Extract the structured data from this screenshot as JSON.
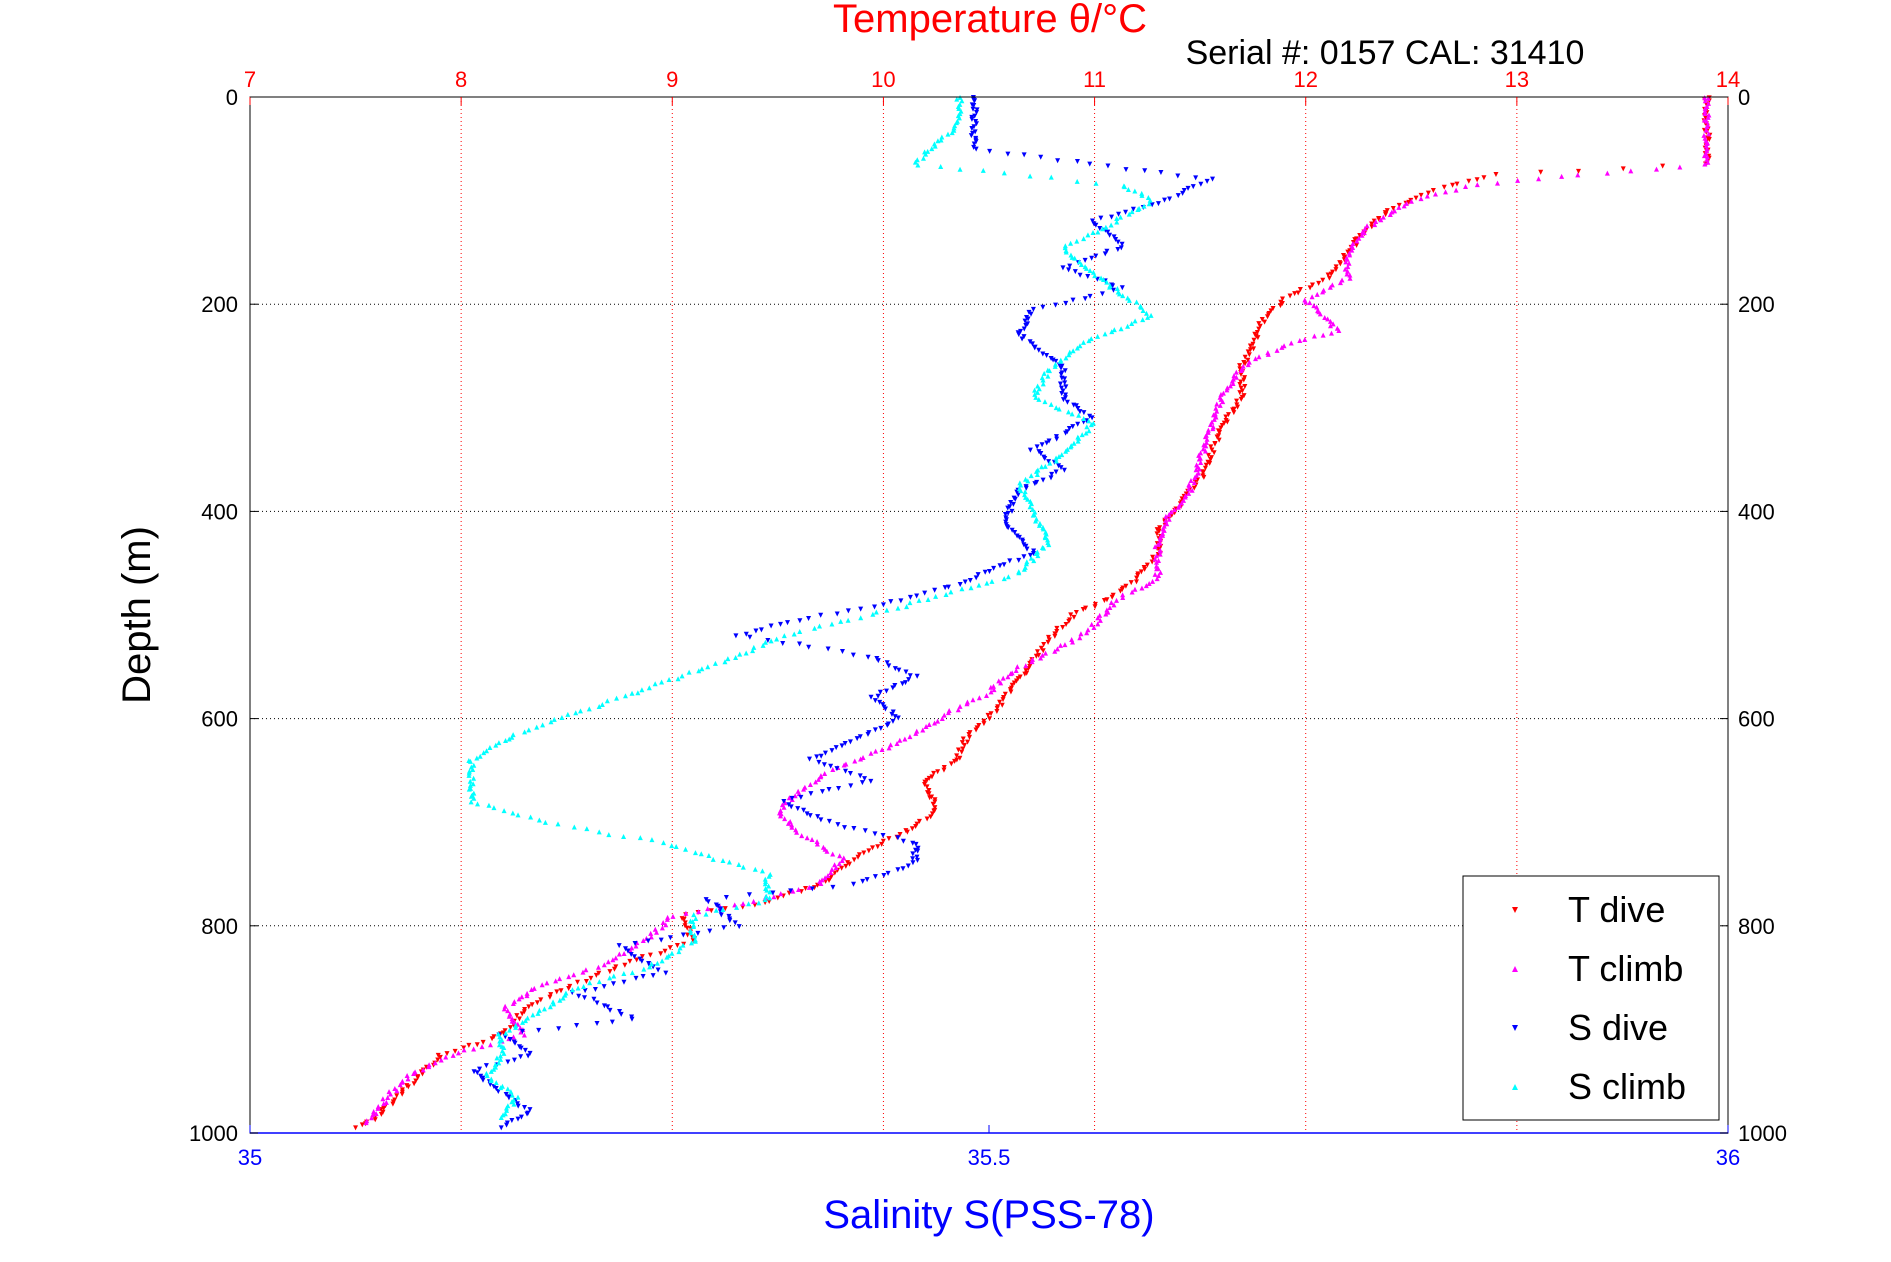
{
  "chart_data": {
    "type": "scatter",
    "title": "Temperature θ/°C",
    "subtitle": "Serial #: 0157  CAL: 31410",
    "xlabel": "Salinity S(PSS-78)",
    "ylabel": "Depth (m)",
    "x_top_axis": {
      "label": "Temperature θ/°C",
      "lim": [
        7,
        14
      ],
      "ticks": [
        "7",
        "8",
        "9",
        "10",
        "11",
        "12",
        "13",
        "14"
      ],
      "color": "#ff0000"
    },
    "x_bottom_axis": {
      "label": "Salinity S(PSS-78)",
      "lim": [
        35,
        36
      ],
      "ticks": [
        "35",
        "35.5",
        "36"
      ],
      "color": "#0000ff"
    },
    "y_axis": {
      "label": "Depth (m)",
      "lim": [
        0,
        1000
      ],
      "reversed": true,
      "ticks": [
        "0",
        "200",
        "400",
        "600",
        "800",
        "1000"
      ]
    },
    "grid": true,
    "legend_placement": "bottom-right",
    "series": [
      {
        "name": "T dive",
        "axis": "temperature",
        "color": "#ff0000",
        "marker": "triangle-down",
        "points": [
          [
            13.9,
            0
          ],
          [
            13.9,
            20
          ],
          [
            13.9,
            50
          ],
          [
            13.9,
            65
          ],
          [
            12.9,
            75
          ],
          [
            12.6,
            90
          ],
          [
            12.4,
            110
          ],
          [
            12.3,
            125
          ],
          [
            12.2,
            150
          ],
          [
            12.1,
            175
          ],
          [
            11.9,
            195
          ],
          [
            11.8,
            215
          ],
          [
            11.75,
            240
          ],
          [
            11.7,
            260
          ],
          [
            11.7,
            290
          ],
          [
            11.6,
            320
          ],
          [
            11.55,
            345
          ],
          [
            11.5,
            370
          ],
          [
            11.4,
            395
          ],
          [
            11.3,
            420
          ],
          [
            11.3,
            440
          ],
          [
            11.2,
            465
          ],
          [
            11.1,
            480
          ],
          [
            10.9,
            500
          ],
          [
            10.8,
            520
          ],
          [
            10.7,
            545
          ],
          [
            10.6,
            575
          ],
          [
            10.5,
            600
          ],
          [
            10.4,
            615
          ],
          [
            10.35,
            640
          ],
          [
            10.2,
            660
          ],
          [
            10.25,
            690
          ],
          [
            10.1,
            710
          ],
          [
            9.9,
            730
          ],
          [
            9.7,
            760
          ],
          [
            9.4,
            780
          ],
          [
            9.05,
            790
          ],
          [
            9.1,
            815
          ],
          [
            8.8,
            835
          ],
          [
            8.5,
            860
          ],
          [
            8.3,
            880
          ],
          [
            8.2,
            905
          ],
          [
            7.9,
            925
          ],
          [
            7.8,
            945
          ],
          [
            7.7,
            965
          ],
          [
            7.6,
            985
          ],
          [
            7.5,
            995
          ]
        ]
      },
      {
        "name": "T climb",
        "axis": "temperature",
        "color": "#ff00ff",
        "marker": "triangle-up",
        "points": [
          [
            13.9,
            0
          ],
          [
            13.9,
            20
          ],
          [
            13.9,
            50
          ],
          [
            13.9,
            65
          ],
          [
            13.3,
            75
          ],
          [
            12.8,
            85
          ],
          [
            12.5,
            100
          ],
          [
            12.3,
            125
          ],
          [
            12.2,
            150
          ],
          [
            12.2,
            175
          ],
          [
            12.0,
            195
          ],
          [
            12.15,
            225
          ],
          [
            11.9,
            240
          ],
          [
            11.7,
            260
          ],
          [
            11.6,
            290
          ],
          [
            11.55,
            320
          ],
          [
            11.5,
            350
          ],
          [
            11.45,
            380
          ],
          [
            11.35,
            405
          ],
          [
            11.3,
            430
          ],
          [
            11.3,
            465
          ],
          [
            11.1,
            485
          ],
          [
            11.0,
            510
          ],
          [
            10.85,
            530
          ],
          [
            10.6,
            555
          ],
          [
            10.5,
            575
          ],
          [
            10.3,
            595
          ],
          [
            10.15,
            615
          ],
          [
            10.0,
            630
          ],
          [
            9.75,
            650
          ],
          [
            9.6,
            670
          ],
          [
            9.5,
            690
          ],
          [
            9.6,
            710
          ],
          [
            9.8,
            735
          ],
          [
            9.7,
            760
          ],
          [
            9.3,
            780
          ],
          [
            9.0,
            790
          ],
          [
            8.9,
            810
          ],
          [
            8.7,
            835
          ],
          [
            8.35,
            860
          ],
          [
            8.2,
            880
          ],
          [
            8.3,
            905
          ],
          [
            7.95,
            925
          ],
          [
            7.75,
            945
          ],
          [
            7.65,
            965
          ],
          [
            7.55,
            990
          ]
        ]
      },
      {
        "name": "S dive",
        "axis": "salinity",
        "color": "#0000ff",
        "marker": "triangle-down",
        "points": [
          [
            35.49,
            0
          ],
          [
            35.49,
            20
          ],
          [
            35.49,
            50
          ],
          [
            35.65,
            80
          ],
          [
            35.62,
            100
          ],
          [
            35.57,
            120
          ],
          [
            35.59,
            145
          ],
          [
            35.55,
            165
          ],
          [
            35.59,
            185
          ],
          [
            35.53,
            205
          ],
          [
            35.52,
            230
          ],
          [
            35.55,
            260
          ],
          [
            35.55,
            290
          ],
          [
            35.57,
            310
          ],
          [
            35.53,
            340
          ],
          [
            35.55,
            360
          ],
          [
            35.52,
            380
          ],
          [
            35.51,
            410
          ],
          [
            35.53,
            440
          ],
          [
            35.48,
            470
          ],
          [
            35.43,
            490
          ],
          [
            35.37,
            505
          ],
          [
            35.33,
            520
          ],
          [
            35.42,
            540
          ],
          [
            35.45,
            560
          ],
          [
            35.42,
            580
          ],
          [
            35.44,
            600
          ],
          [
            35.41,
            620
          ],
          [
            35.38,
            640
          ],
          [
            35.42,
            660
          ],
          [
            35.36,
            680
          ],
          [
            35.39,
            700
          ],
          [
            35.45,
            720
          ],
          [
            35.45,
            740
          ],
          [
            35.41,
            760
          ],
          [
            35.31,
            775
          ],
          [
            35.33,
            800
          ],
          [
            35.25,
            820
          ],
          [
            35.28,
            845
          ],
          [
            35.22,
            865
          ],
          [
            35.26,
            890
          ],
          [
            35.17,
            905
          ],
          [
            35.19,
            925
          ],
          [
            35.15,
            940
          ],
          [
            35.17,
            960
          ],
          [
            35.19,
            980
          ],
          [
            35.17,
            995
          ]
        ]
      },
      {
        "name": "S climb",
        "axis": "salinity",
        "color": "#00ffff",
        "marker": "triangle-up",
        "points": [
          [
            35.48,
            0
          ],
          [
            35.48,
            25
          ],
          [
            35.45,
            65
          ],
          [
            35.59,
            85
          ],
          [
            35.61,
            100
          ],
          [
            35.58,
            125
          ],
          [
            35.55,
            145
          ],
          [
            35.57,
            170
          ],
          [
            35.59,
            190
          ],
          [
            35.61,
            210
          ],
          [
            35.56,
            240
          ],
          [
            35.54,
            265
          ],
          [
            35.53,
            290
          ],
          [
            35.57,
            315
          ],
          [
            35.55,
            345
          ],
          [
            35.52,
            375
          ],
          [
            35.53,
            400
          ],
          [
            35.54,
            430
          ],
          [
            35.52,
            460
          ],
          [
            35.47,
            480
          ],
          [
            35.42,
            500
          ],
          [
            35.36,
            520
          ],
          [
            35.32,
            545
          ],
          [
            35.28,
            565
          ],
          [
            35.23,
            590
          ],
          [
            35.18,
            615
          ],
          [
            35.15,
            640
          ],
          [
            35.15,
            660
          ],
          [
            35.15,
            680
          ],
          [
            35.2,
            700
          ],
          [
            35.28,
            720
          ],
          [
            35.35,
            750
          ],
          [
            35.35,
            775
          ],
          [
            35.3,
            790
          ],
          [
            35.3,
            815
          ],
          [
            35.27,
            840
          ],
          [
            35.22,
            860
          ],
          [
            35.2,
            880
          ],
          [
            35.17,
            905
          ],
          [
            35.17,
            925
          ],
          [
            35.16,
            945
          ],
          [
            35.18,
            965
          ],
          [
            35.17,
            985
          ]
        ]
      }
    ]
  }
}
